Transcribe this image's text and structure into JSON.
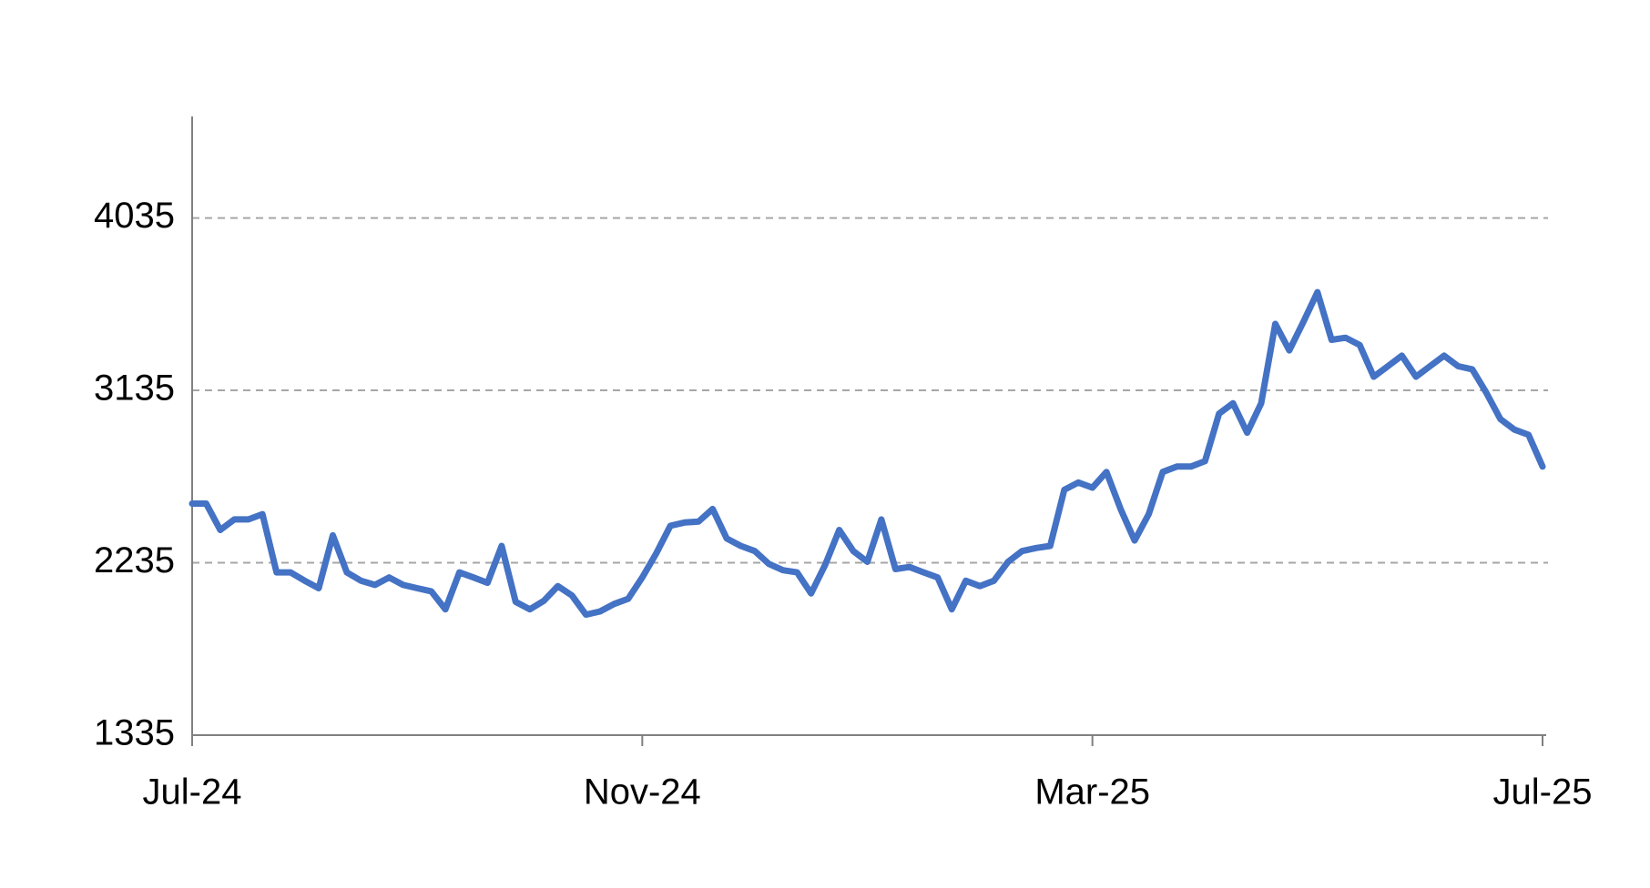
{
  "chart_data": {
    "type": "line",
    "categories": [
      "Jul-24",
      null,
      null,
      null,
      null,
      null,
      null,
      null,
      null,
      null,
      null,
      null,
      null,
      null,
      null,
      null,
      null,
      null,
      null,
      null,
      null,
      null,
      null,
      null,
      null,
      null,
      null,
      null,
      null,
      null,
      null,
      null,
      "Nov-24",
      null,
      null,
      null,
      null,
      null,
      null,
      null,
      null,
      null,
      null,
      null,
      null,
      null,
      null,
      null,
      null,
      null,
      null,
      null,
      null,
      null,
      null,
      null,
      null,
      null,
      null,
      null,
      null,
      null,
      null,
      null,
      "Mar-25",
      null,
      null,
      null,
      null,
      null,
      null,
      null,
      null,
      null,
      null,
      null,
      null,
      null,
      null,
      null,
      null,
      null,
      null,
      null,
      null,
      null,
      null,
      null,
      null,
      null,
      null,
      null,
      null,
      null,
      null,
      null,
      "Jul-25"
    ],
    "series": [
      {
        "color": "#4472c4",
        "values": [
          2544,
          2544,
          2406,
          2461,
          2461,
          2489,
          2185,
          2185,
          2141,
          2102,
          2378,
          2185,
          2141,
          2119,
          2158,
          2119,
          2102,
          2086,
          1992,
          2185,
          2158,
          2130,
          2323,
          2031,
          1992,
          2036,
          2113,
          2064,
          1964,
          1981,
          2020,
          2047,
          2158,
          2285,
          2428,
          2445,
          2450,
          2516,
          2362,
          2323,
          2296,
          2229,
          2196,
          2185,
          2075,
          2224,
          2406,
          2296,
          2240,
          2461,
          2202,
          2213,
          2185,
          2158,
          1992,
          2141,
          2113,
          2141,
          2240,
          2296,
          2312,
          2323,
          2616,
          2654,
          2627,
          2709,
          2516,
          2351,
          2489,
          2709,
          2737,
          2737,
          2765,
          3013,
          3068,
          2914,
          3068,
          3482,
          3344,
          3493,
          3648,
          3399,
          3410,
          3372,
          3206,
          3261,
          3316,
          3206,
          3261,
          3316,
          3261,
          3245,
          3123,
          2985,
          2930,
          2903,
          2737
        ]
      }
    ],
    "ylim": [
      1335,
      4565
    ],
    "yticks": [
      1335,
      2235,
      3135,
      4035
    ],
    "grid": true
  }
}
